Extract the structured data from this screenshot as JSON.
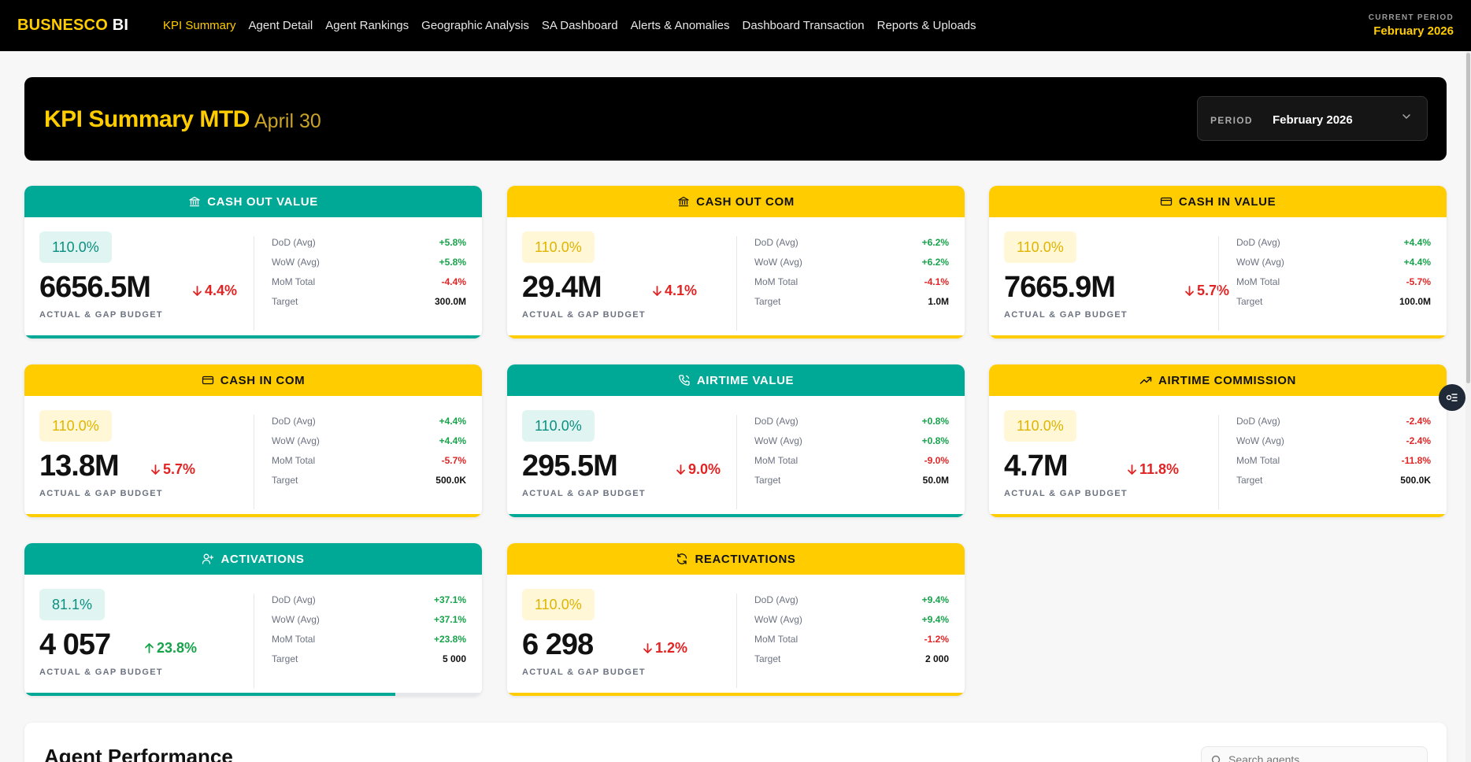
{
  "brand": {
    "part1": "BUSNESCO",
    "part2": "BI"
  },
  "nav": [
    {
      "label": "KPI Summary",
      "active": true
    },
    {
      "label": "Agent Detail"
    },
    {
      "label": "Agent Rankings"
    },
    {
      "label": "Geographic Analysis"
    },
    {
      "label": "SA Dashboard"
    },
    {
      "label": "Alerts & Anomalies"
    },
    {
      "label": "Dashboard Transaction"
    },
    {
      "label": "Reports & Uploads"
    }
  ],
  "current_period": {
    "label": "CURRENT PERIOD",
    "value": "February 2026"
  },
  "header": {
    "title": "KPI Summary MTD",
    "subtitle": "April 30",
    "period_label": "PERIOD",
    "period_value": "February 2026"
  },
  "stat_labels": {
    "dod": "DoD (Avg)",
    "wow": "WoW (Avg)",
    "mom": "MoM Total",
    "target": "Target"
  },
  "card_footer": "ACTUAL & GAP BUDGET",
  "colors": {
    "teal": "#00a896",
    "yellow": "#ffcc00",
    "positive": "#16a34a",
    "negative": "#e02424"
  },
  "cards": [
    {
      "title": "CASH OUT VALUE",
      "icon": "bank-icon",
      "theme": "teal",
      "pct": "110.0%",
      "value": "6656.5M",
      "change": "4.4%",
      "direction": "down",
      "dod": "+5.8%",
      "wow": "+5.8%",
      "mom": "-4.4%",
      "target": "300.0M",
      "progress": 1.0
    },
    {
      "title": "CASH OUT COM",
      "icon": "bank-icon",
      "theme": "yellow",
      "pct": "110.0%",
      "value": "29.4M",
      "change": "4.1%",
      "direction": "down",
      "dod": "+6.2%",
      "wow": "+6.2%",
      "mom": "-4.1%",
      "target": "1.0M",
      "progress": 1.0
    },
    {
      "title": "CASH IN VALUE",
      "icon": "card-icon",
      "theme": "yellow",
      "pct": "110.0%",
      "value": "7665.9M",
      "change": "5.7%",
      "direction": "down",
      "dod": "+4.4%",
      "wow": "+4.4%",
      "mom": "-5.7%",
      "target": "100.0M",
      "progress": 1.0
    },
    {
      "title": "CASH IN COM",
      "icon": "card-icon",
      "theme": "yellow",
      "pct": "110.0%",
      "value": "13.8M",
      "change": "5.7%",
      "direction": "down",
      "dod": "+4.4%",
      "wow": "+4.4%",
      "mom": "-5.7%",
      "target": "500.0K",
      "progress": 1.0
    },
    {
      "title": "AIRTIME VALUE",
      "icon": "phone-icon",
      "theme": "teal",
      "pct": "110.0%",
      "value": "295.5M",
      "change": "9.0%",
      "direction": "down",
      "dod": "+0.8%",
      "wow": "+0.8%",
      "mom": "-9.0%",
      "target": "50.0M",
      "progress": 1.0
    },
    {
      "title": "AIRTIME COMMISSION",
      "icon": "trending-up-icon",
      "theme": "yellow",
      "pct": "110.0%",
      "value": "4.7M",
      "change": "11.8%",
      "direction": "down",
      "dod": "-2.4%",
      "wow": "-2.4%",
      "mom": "-11.8%",
      "target": "500.0K",
      "progress": 1.0
    },
    {
      "title": "ACTIVATIONS",
      "icon": "user-plus-icon",
      "theme": "teal",
      "pct": "81.1%",
      "value": "4 057",
      "change": "23.8%",
      "direction": "up",
      "dod": "+37.1%",
      "wow": "+37.1%",
      "mom": "+23.8%",
      "target": "5 000",
      "progress": 0.811
    },
    {
      "title": "REACTIVATIONS",
      "icon": "refresh-icon",
      "theme": "yellow",
      "pct": "110.0%",
      "value": "6 298",
      "change": "1.2%",
      "direction": "down",
      "dod": "+9.4%",
      "wow": "+9.4%",
      "mom": "-1.2%",
      "target": "2 000",
      "progress": 1.0
    }
  ],
  "agent_performance": {
    "title": "Agent Performance",
    "search_placeholder": "Search agents..."
  }
}
